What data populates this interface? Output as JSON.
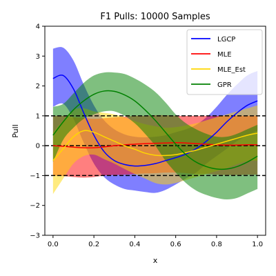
{
  "chart_data": {
    "type": "line",
    "title": "F1 Pulls: 10000 Samples",
    "xlabel": "x",
    "ylabel": "Pull",
    "xlim": [
      -0.04,
      1.04
    ],
    "ylim": [
      -3,
      4
    ],
    "xticks": [
      "0.0",
      "0.2",
      "0.4",
      "0.6",
      "0.8",
      "1.0"
    ],
    "xtick_values": [
      0.0,
      0.2,
      0.4,
      0.6,
      0.8,
      1.0
    ],
    "yticks": [
      "−3",
      "−2",
      "−1",
      "0",
      "1",
      "2",
      "3",
      "4"
    ],
    "ytick_values": [
      -3,
      -2,
      -1,
      0,
      1,
      2,
      3,
      4
    ],
    "grid": false,
    "legend_position": "top-right",
    "reference_lines": [
      {
        "y": 1,
        "style": "dashed",
        "color": "#000000"
      },
      {
        "y": 0,
        "style": "dashed",
        "color": "#000000"
      },
      {
        "y": -1,
        "style": "dashed",
        "color": "#000000"
      }
    ],
    "series": [
      {
        "name": "LGCP",
        "color": "#0000ff",
        "x": [
          0.0,
          0.05,
          0.1,
          0.15,
          0.2,
          0.25,
          0.3,
          0.35,
          0.4,
          0.45,
          0.5,
          0.55,
          0.6,
          0.65,
          0.7,
          0.75,
          0.8,
          0.85,
          0.9,
          0.95,
          1.0
        ],
        "y": [
          2.25,
          2.35,
          1.9,
          1.1,
          0.35,
          -0.2,
          -0.5,
          -0.63,
          -0.68,
          -0.66,
          -0.6,
          -0.5,
          -0.4,
          -0.28,
          -0.1,
          0.15,
          0.45,
          0.8,
          1.1,
          1.35,
          1.5
        ],
        "upper": [
          3.25,
          3.28,
          2.85,
          2.05,
          1.35,
          0.85,
          0.55,
          0.38,
          0.3,
          0.28,
          0.3,
          0.35,
          0.45,
          0.55,
          0.7,
          0.95,
          1.3,
          1.7,
          2.05,
          2.35,
          2.5
        ],
        "lower": [
          1.3,
          1.4,
          0.9,
          0.1,
          -0.6,
          -1.05,
          -1.3,
          -1.45,
          -1.5,
          -1.55,
          -1.58,
          -1.48,
          -1.3,
          -1.1,
          -0.9,
          -0.6,
          -0.35,
          -0.1,
          0.15,
          0.35,
          0.5
        ]
      },
      {
        "name": "MLE",
        "color": "#ff0000",
        "x": [
          0.0,
          0.05,
          0.1,
          0.15,
          0.2,
          0.25,
          0.3,
          0.35,
          0.4,
          0.45,
          0.5,
          0.55,
          0.6,
          0.65,
          0.7,
          0.75,
          0.8,
          0.85,
          0.9,
          0.95,
          1.0
        ],
        "y": [
          0.0,
          -0.02,
          -0.05,
          -0.07,
          -0.07,
          -0.04,
          0.0,
          0.03,
          0.05,
          0.07,
          0.08,
          0.09,
          0.1,
          0.09,
          0.07,
          0.05,
          0.03,
          0.02,
          0.02,
          0.03,
          0.03
        ],
        "upper": [
          1.0,
          1.0,
          0.95,
          0.93,
          0.9,
          0.92,
          0.95,
          0.97,
          1.0,
          1.0,
          1.02,
          1.02,
          1.0,
          1.0,
          1.0,
          1.0,
          1.0,
          1.0,
          1.0,
          1.0,
          1.0
        ],
        "lower": [
          -1.0,
          -1.02,
          -1.05,
          -1.07,
          -1.05,
          -1.0,
          -0.98,
          -0.97,
          -0.95,
          -0.93,
          -0.92,
          -0.9,
          -0.9,
          -0.92,
          -0.95,
          -0.95,
          -0.97,
          -0.98,
          -0.98,
          -0.97,
          -0.97
        ]
      },
      {
        "name": "MLE_Est",
        "color": "#ffd700",
        "x": [
          0.0,
          0.05,
          0.1,
          0.15,
          0.2,
          0.25,
          0.3,
          0.35,
          0.4,
          0.45,
          0.5,
          0.55,
          0.6,
          0.65,
          0.7,
          0.75,
          0.8,
          0.85,
          0.9,
          0.95,
          1.0
        ],
        "y": [
          -0.5,
          -0.1,
          0.3,
          0.5,
          0.45,
          0.3,
          0.15,
          0.0,
          -0.12,
          -0.25,
          -0.32,
          -0.33,
          -0.3,
          -0.23,
          -0.15,
          -0.05,
          0.05,
          0.15,
          0.25,
          0.35,
          0.42
        ],
        "upper": [
          0.45,
          0.85,
          1.2,
          1.25,
          1.15,
          1.1,
          1.05,
          0.95,
          0.82,
          0.72,
          0.65,
          0.6,
          0.62,
          0.68,
          0.75,
          0.85,
          0.95,
          1.05,
          1.15,
          1.25,
          1.35
        ],
        "lower": [
          -1.62,
          -1.1,
          -0.6,
          -0.35,
          -0.3,
          -0.45,
          -0.6,
          -0.78,
          -0.95,
          -1.1,
          -1.25,
          -1.3,
          -1.25,
          -1.15,
          -1.05,
          -0.95,
          -0.85,
          -0.75,
          -0.62,
          -0.52,
          -0.5
        ]
      },
      {
        "name": "GPR",
        "color": "#008000",
        "x": [
          0.0,
          0.05,
          0.1,
          0.15,
          0.2,
          0.25,
          0.3,
          0.35,
          0.4,
          0.45,
          0.5,
          0.55,
          0.6,
          0.65,
          0.7,
          0.75,
          0.8,
          0.85,
          0.9,
          0.95,
          1.0
        ],
        "y": [
          0.35,
          0.8,
          1.2,
          1.5,
          1.72,
          1.83,
          1.82,
          1.7,
          1.5,
          1.2,
          0.85,
          0.45,
          0.05,
          -0.3,
          -0.55,
          -0.7,
          -0.78,
          -0.78,
          -0.7,
          -0.55,
          -0.35
        ],
        "upper": [
          1.3,
          1.4,
          1.75,
          2.1,
          2.35,
          2.45,
          2.45,
          2.4,
          2.25,
          2.05,
          1.8,
          1.45,
          1.05,
          0.75,
          0.55,
          0.4,
          0.3,
          0.3,
          0.4,
          0.55,
          0.7
        ],
        "lower": [
          -0.55,
          0.2,
          0.6,
          0.9,
          1.05,
          1.15,
          1.15,
          1.0,
          0.75,
          0.4,
          0.0,
          -0.5,
          -0.9,
          -1.25,
          -1.5,
          -1.65,
          -1.75,
          -1.8,
          -1.75,
          -1.6,
          -1.45
        ]
      }
    ]
  }
}
